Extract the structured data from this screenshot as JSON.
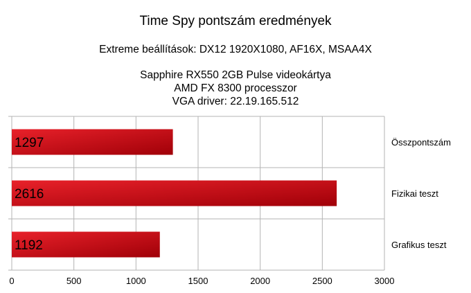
{
  "chart_data": {
    "type": "bar",
    "orientation": "horizontal",
    "title": "Time Spy pontszám eredmények",
    "subtitle": "Extreme beállítások: DX12 1920X1080, AF16X, MSAA4X",
    "info_lines": [
      "Sapphire RX550 2GB Pulse videokártya",
      "AMD FX 8300 processzor",
      "VGA driver: 22.19.165.512"
    ],
    "categories": [
      "Összpontszám",
      "Fizikai teszt",
      "Grafikus teszt"
    ],
    "values": [
      1297,
      2616,
      1192
    ],
    "value_labels": [
      "1297",
      "2616",
      "1192"
    ],
    "xlim": [
      0,
      3000
    ],
    "xticks": [
      0,
      500,
      1000,
      1500,
      2000,
      2500,
      3000
    ],
    "xtick_labels": [
      "0",
      "500",
      "1000",
      "1500",
      "2000",
      "2500",
      "3000"
    ],
    "grid": true,
    "bar_color_light": "#e8212a",
    "bar_color_dark": "#a00008",
    "grid_color": "#b3b3b3"
  }
}
